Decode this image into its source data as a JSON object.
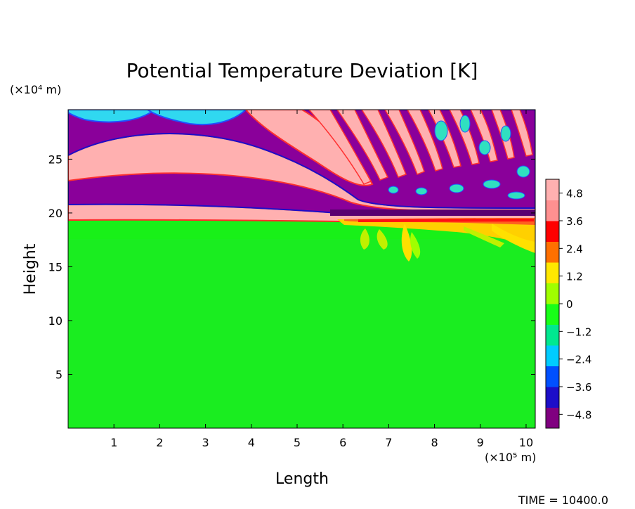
{
  "chart_data": {
    "type": "heatmap",
    "title": "Potential Temperature Deviation [K]",
    "xlabel": "Length",
    "ylabel": "Height",
    "x_unit_label": "(×10⁵ m)",
    "y_unit_label": "(×10⁴ m)",
    "xlim": [
      0,
      10.2
    ],
    "ylim": [
      0,
      29.6
    ],
    "x_ticks": [
      1,
      2,
      3,
      4,
      5,
      6,
      7,
      8,
      9,
      10
    ],
    "y_ticks": [
      5,
      10,
      15,
      20,
      25
    ],
    "colorbar": {
      "range": [
        -5.4,
        5.4
      ],
      "tick_values": [
        4.8,
        3.6,
        2.4,
        1.2,
        0,
        -1.2,
        -2.4,
        -3.6,
        -4.8
      ],
      "tick_labels": [
        "4.8",
        "3.6",
        "2.4",
        "1.2",
        "0",
        "−1.2",
        "−2.4",
        "−3.6",
        "−4.8"
      ],
      "colors_low_to_high": [
        "#800080",
        "#1c0ec8",
        "#0050ff",
        "#00ccff",
        "#00e890",
        "#18ff18",
        "#a0ff00",
        "#ffe800",
        "#ff7000",
        "#ff0000",
        "#ff9090",
        "#ffb0b0"
      ]
    },
    "annotation": "TIME = 10400.0"
  },
  "colors": {
    "background": "#ffffff",
    "axis": "#000000"
  }
}
